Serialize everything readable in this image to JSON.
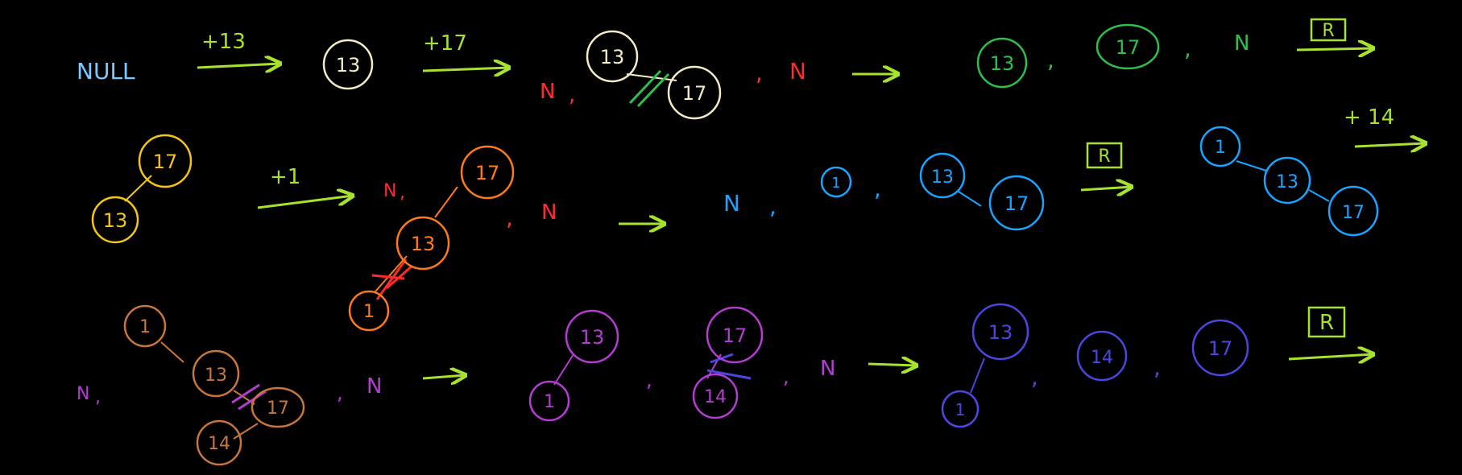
{
  "colors": {
    "background": "#000000",
    "null_label": "#7ec8ff",
    "arrow": "#a6e22e",
    "white": "#f3ecc4",
    "red": "#ff2a2a",
    "green": "#2fc04a",
    "yellow": "#f5c518",
    "orange": "#ff7a1a",
    "blue": "#1aa3ff",
    "brown": "#c8763c",
    "purple": "#b43cd2",
    "indigo": "#4c46e0"
  },
  "labels": {
    "null": "NULL",
    "plus13": "+13",
    "plus17": "+17",
    "plus1": "+1",
    "plus14": "+ 14",
    "n": "N",
    "comma": ",",
    "rotate": "R"
  },
  "nodes": {
    "v1": "1",
    "v13": "13",
    "v14": "14",
    "v17": "17"
  }
}
